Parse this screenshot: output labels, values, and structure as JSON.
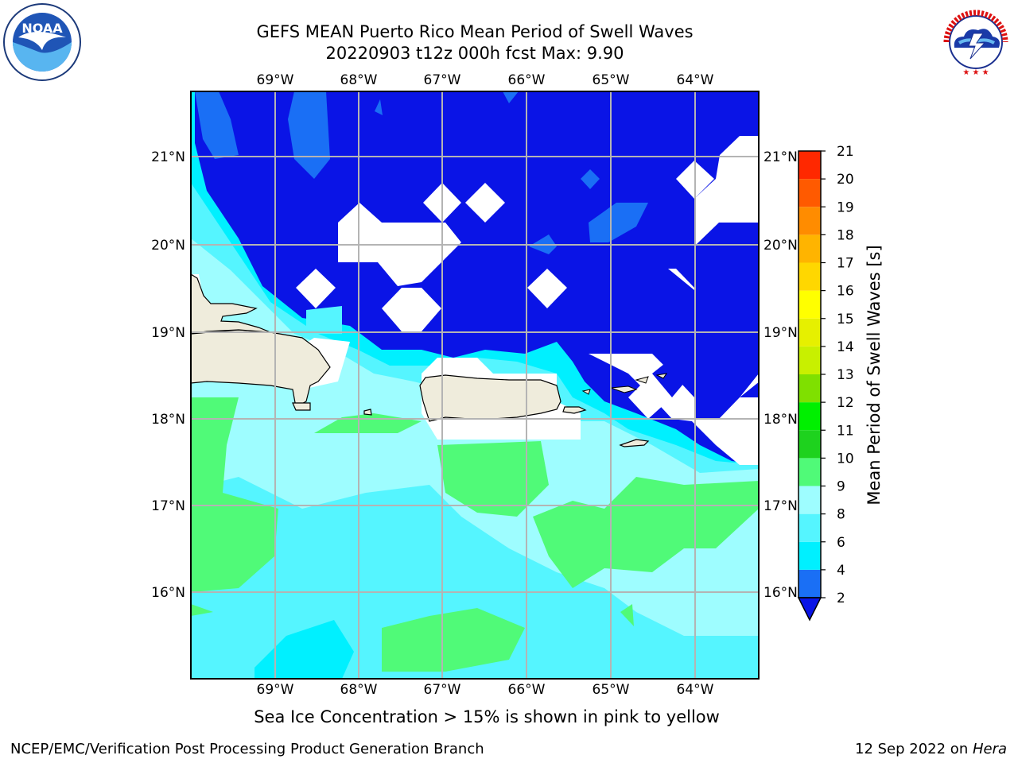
{
  "title": {
    "line1": "GEFS MEAN Puerto Rico Mean Period of Swell Waves",
    "line2": "20220903 t12z 000h fcst   Max: 9.90"
  },
  "map": {
    "lon_labels": [
      "69°W",
      "68°W",
      "67°W",
      "66°W",
      "65°W",
      "64°W"
    ],
    "lat_labels": [
      "21°N",
      "20°N",
      "19°N",
      "18°N",
      "17°N",
      "16°N"
    ]
  },
  "colorbar": {
    "label": "Mean Period of Swell Waves [s]",
    "ticks": [
      "2",
      "4",
      "6",
      "8",
      "9",
      "10",
      "11",
      "12",
      "13",
      "14",
      "15",
      "16",
      "17",
      "18",
      "19",
      "20",
      "21"
    ],
    "colors": [
      "#0a14e6",
      "#1a6ff5",
      "#00f0ff",
      "#55f5ff",
      "#9efdff",
      "#50fa78",
      "#1ed21e",
      "#00f000",
      "#7fe000",
      "#c8f000",
      "#e6f000",
      "#ffff00",
      "#ffd700",
      "#ffb400",
      "#ff8c00",
      "#ff5a00",
      "#ff2800",
      "#ff0000"
    ]
  },
  "ice_note": "Sea Ice Concentration > 15% is shown in pink to yellow",
  "footer": {
    "left": "NCEP/EMC/Verification Post Processing Product Generation Branch",
    "right_date": "12 Sep 2022 on ",
    "right_host": "Hera"
  },
  "logos": {
    "noaa": "NOAA",
    "nws": "NATIONAL WEATHER SERVICE"
  }
}
